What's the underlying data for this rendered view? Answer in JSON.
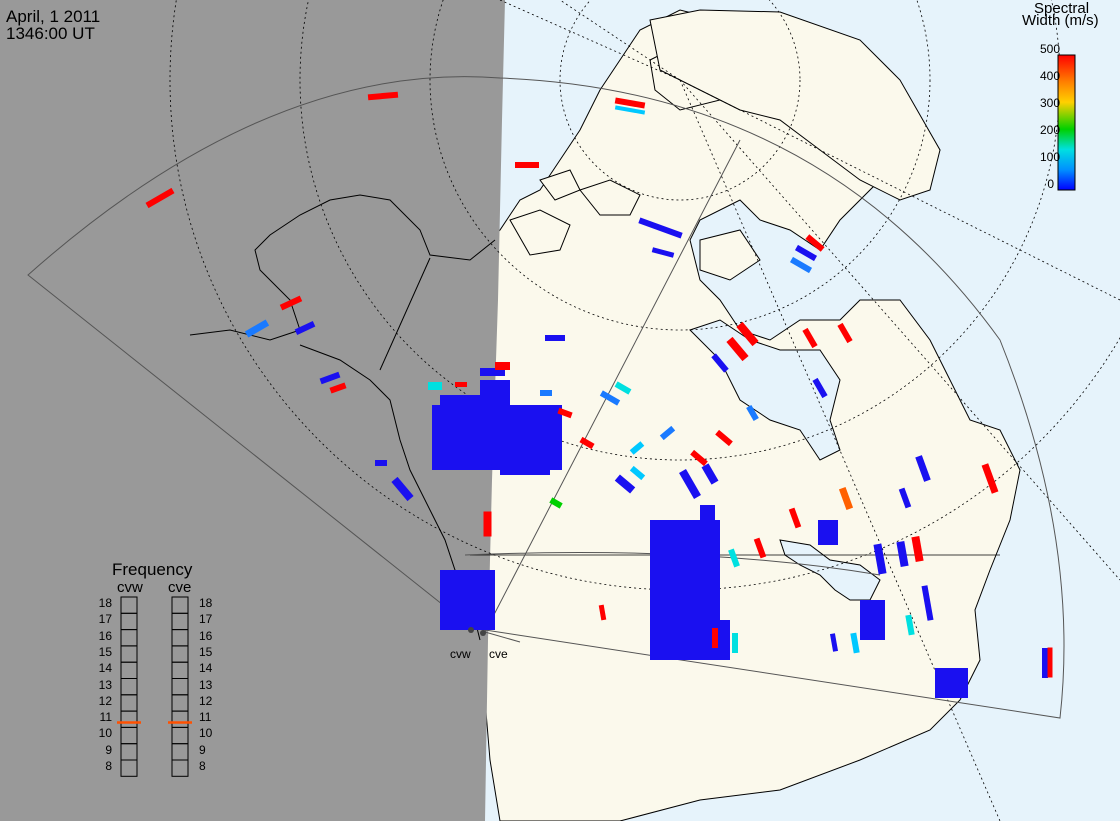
{
  "header": {
    "date": "April, 1 2011",
    "time": "1346:00 UT"
  },
  "colorbar": {
    "title_line1": "Spectral",
    "title_line2": "Width (m/s)",
    "ticks": [
      "500",
      "400",
      "300",
      "200",
      "100",
      "0"
    ],
    "stops": [
      "#ff0000",
      "#ff8000",
      "#ffd000",
      "#00d000",
      "#00e0e0",
      "#0090ff",
      "#0000ff"
    ]
  },
  "frequency_panel": {
    "title": "Frequency",
    "radars": [
      {
        "code": "cvw",
        "selected_mhz": 10.8
      },
      {
        "code": "cve",
        "selected_mhz": 10.8
      }
    ],
    "ticks": [
      "18",
      "17",
      "16",
      "15",
      "14",
      "13",
      "12",
      "11",
      "10",
      "9",
      "8"
    ],
    "marker_color": "#ff5000"
  },
  "radars": [
    {
      "code": "cvw"
    },
    {
      "code": "cve"
    }
  ],
  "colors": {
    "nightside": "#999999",
    "land": "#fbf9ec",
    "ocean": "#e6f3fb",
    "echo_low": "#1a10f0"
  }
}
